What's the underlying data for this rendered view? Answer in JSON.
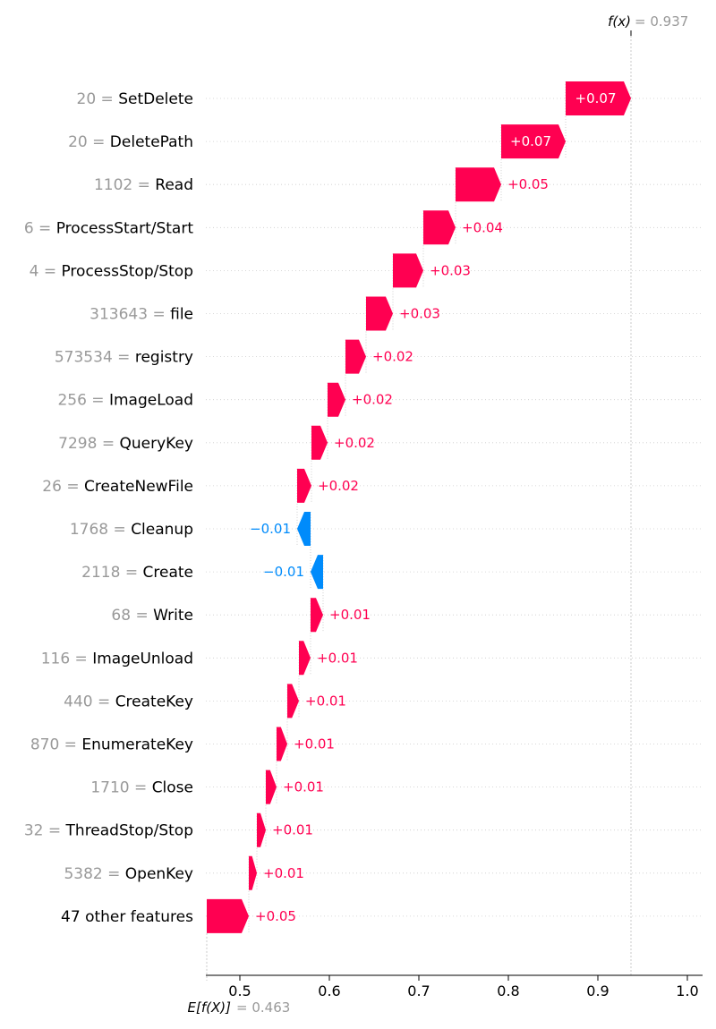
{
  "chart_data": {
    "type": "waterfall",
    "base_value": 0.463,
    "output_value": 0.937,
    "base_label": "E[f(X)]",
    "base_value_text": "= 0.463",
    "output_label": "f(x)",
    "output_value_text": "= 0.937",
    "xlim": [
      0.462,
      1.017
    ],
    "xticks": [
      0.5,
      0.6,
      0.7,
      0.8,
      0.9,
      1.0
    ],
    "xtick_labels": [
      "0.5",
      "0.6",
      "0.7",
      "0.8",
      "0.9",
      "1.0"
    ],
    "colors": {
      "positive": "#ff0051",
      "negative": "#008bfb",
      "feature_value": "#999999",
      "feature_name": "#000000"
    },
    "features": [
      {
        "value": "20",
        "name": "SetDelete",
        "label": "+0.07",
        "start": 0.864,
        "end": 0.937
      },
      {
        "value": "20",
        "name": "DeletePath",
        "label": "+0.07",
        "start": 0.792,
        "end": 0.864
      },
      {
        "value": "1102",
        "name": "Read",
        "label": "+0.05",
        "start": 0.741,
        "end": 0.792
      },
      {
        "value": "6",
        "name": "ProcessStart/Start",
        "label": "+0.04",
        "start": 0.705,
        "end": 0.741
      },
      {
        "value": "4",
        "name": "ProcessStop/Stop",
        "label": "+0.03",
        "start": 0.671,
        "end": 0.705
      },
      {
        "value": "313643",
        "name": "file",
        "label": "+0.03",
        "start": 0.641,
        "end": 0.671
      },
      {
        "value": "573534",
        "name": "registry",
        "label": "+0.02",
        "start": 0.618,
        "end": 0.641
      },
      {
        "value": "256",
        "name": "ImageLoad",
        "label": "+0.02",
        "start": 0.598,
        "end": 0.618
      },
      {
        "value": "7298",
        "name": "QueryKey",
        "label": "+0.02",
        "start": 0.58,
        "end": 0.598
      },
      {
        "value": "26",
        "name": "CreateNewFile",
        "label": "+0.02",
        "start": 0.564,
        "end": 0.58
      },
      {
        "value": "1768",
        "name": "Cleanup",
        "label": "−0.01",
        "start": 0.579,
        "end": 0.564
      },
      {
        "value": "2118",
        "name": "Create",
        "label": "−0.01",
        "start": 0.593,
        "end": 0.579
      },
      {
        "value": "68",
        "name": "Write",
        "label": "+0.01",
        "start": 0.579,
        "end": 0.593
      },
      {
        "value": "116",
        "name": "ImageUnload",
        "label": "+0.01",
        "start": 0.566,
        "end": 0.579
      },
      {
        "value": "440",
        "name": "CreateKey",
        "label": "+0.01",
        "start": 0.553,
        "end": 0.566
      },
      {
        "value": "870",
        "name": "EnumerateKey",
        "label": "+0.01",
        "start": 0.541,
        "end": 0.553
      },
      {
        "value": "1710",
        "name": "Close",
        "label": "+0.01",
        "start": 0.529,
        "end": 0.541
      },
      {
        "value": "32",
        "name": "ThreadStop/Stop",
        "label": "+0.01",
        "start": 0.519,
        "end": 0.529
      },
      {
        "value": "5382",
        "name": "OpenKey",
        "label": "+0.01",
        "start": 0.51,
        "end": 0.519
      },
      {
        "value": "",
        "name": "47 other features",
        "label": "+0.05",
        "start": 0.463,
        "end": 0.51
      }
    ]
  }
}
